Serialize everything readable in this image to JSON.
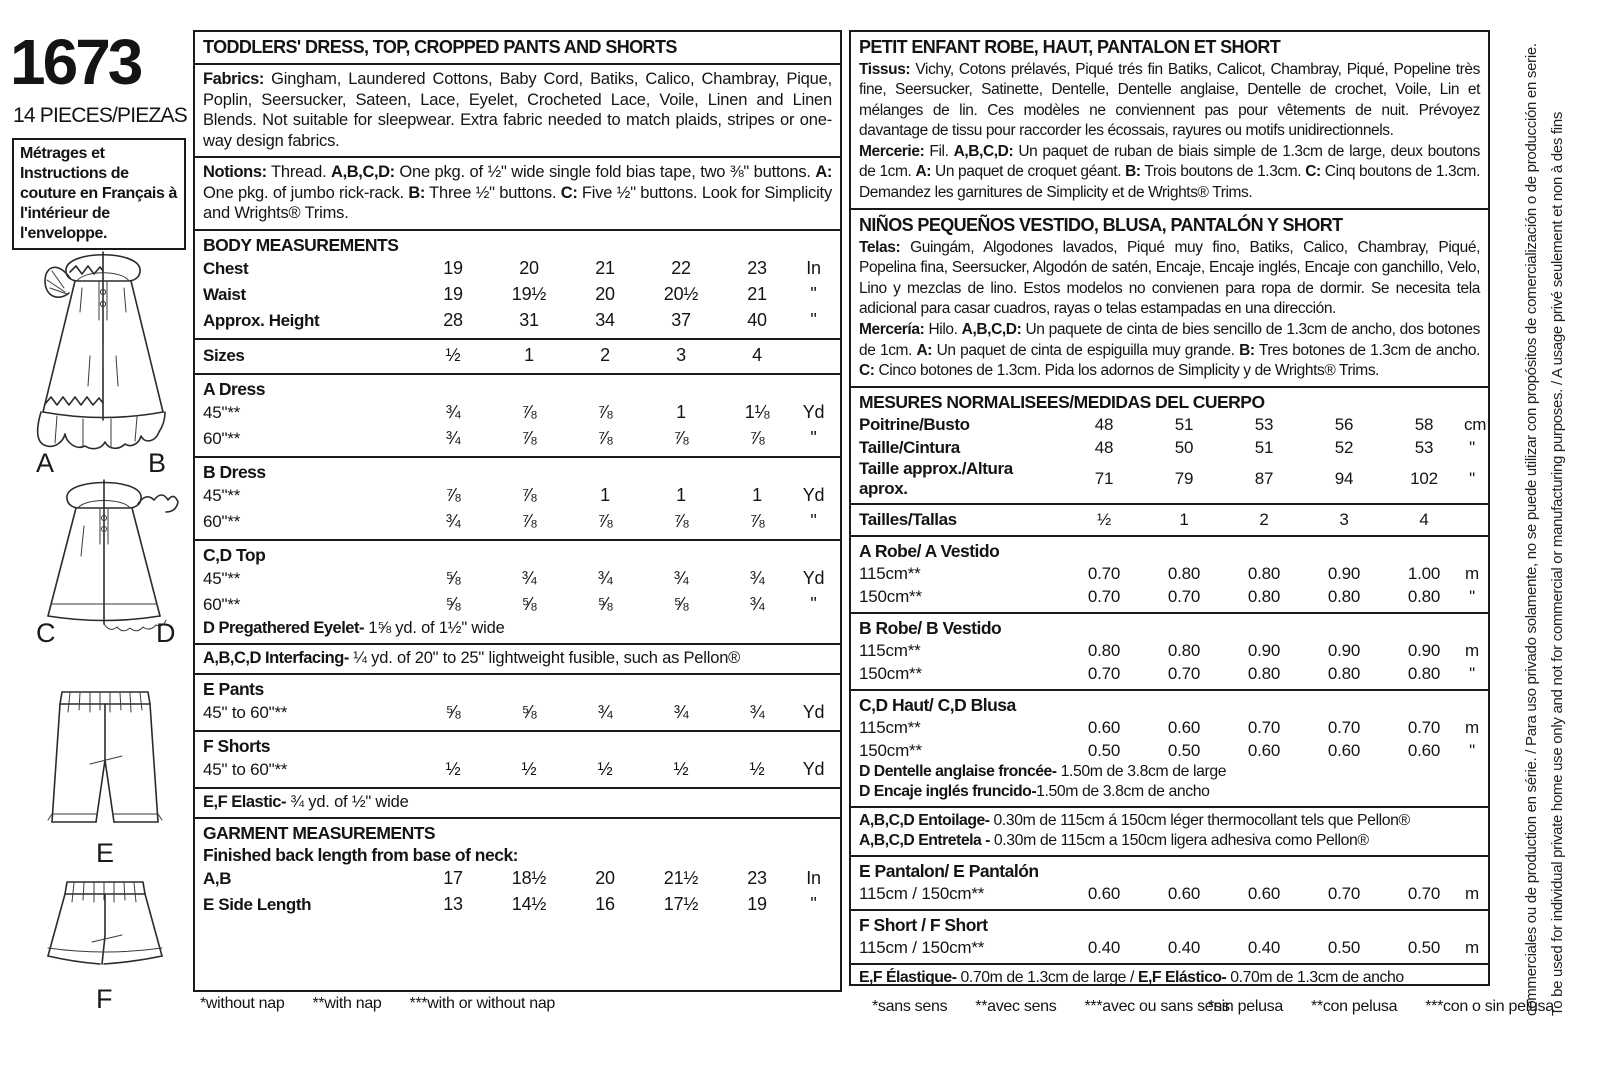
{
  "meta": {
    "pattern_number": "1673",
    "pieces": "14 PIECES/PIEZAS",
    "french_note": "Métrages et Instructions de couture en Français à l'intérieur de l'enveloppe."
  },
  "figures": {
    "dress_left_label": "A",
    "dress_right_label": "B",
    "top_left_label": "C",
    "top_right_label": "D",
    "pants_label": "E",
    "shorts_label": "F"
  },
  "en": {
    "title": "TODDLERS' DRESS, TOP, CROPPED PANTS AND SHORTS",
    "fabrics": [
      {
        "t": "Fabrics:",
        "b": true
      },
      {
        "t": " Gingham, Laundered Cottons, Baby Cord, Batiks, Calico, Chambray, Pique, Poplin, Seersucker, Sateen, Lace, Eyelet, Crocheted Lace, Voile, Linen and Linen Blends. Not suitable for sleepwear. Extra fabric needed to match plaids, stripes or one-way design fabrics."
      }
    ],
    "notions": [
      {
        "t": "Notions:",
        "b": true
      },
      {
        "t": " Thread. "
      },
      {
        "t": "A,B,C,D:",
        "b": true
      },
      {
        "t": " One pkg. of ½\" wide single fold bias tape, two ⅜\" buttons. "
      },
      {
        "t": "A:",
        "b": true
      },
      {
        "t": " One pkg. of jumbo rick-rack. "
      },
      {
        "t": "B:",
        "b": true
      },
      {
        "t": " Three ½\" buttons. "
      },
      {
        "t": "C:",
        "b": true
      },
      {
        "t": " Five ½\" buttons. Look for Simplicity and Wrights® Trims."
      }
    ],
    "body": {
      "header": "BODY MEASUREMENTS",
      "rows": [
        {
          "label": "Chest",
          "bold": true,
          "values": [
            "19",
            "20",
            "21",
            "22",
            "23"
          ],
          "unit": "In"
        },
        {
          "label": "Waist",
          "bold": true,
          "values": [
            "19",
            "19½",
            "20",
            "20½",
            "21"
          ],
          "unit": "\""
        },
        {
          "label": "Approx. Height",
          "bold": true,
          "values": [
            "28",
            "31",
            "34",
            "37",
            "40"
          ],
          "unit": "\""
        }
      ]
    },
    "sizes_rows": [
      {
        "label": "Sizes",
        "bold": true,
        "values": [
          "½",
          "1",
          "2",
          "3",
          "4"
        ],
        "unit": ""
      }
    ],
    "a_dress": {
      "header": "A Dress",
      "rows": [
        {
          "label": "45\"**",
          "bold": false,
          "values": [
            "¾",
            "⅞",
            "⅞",
            "1",
            "1⅛"
          ],
          "unit": "Yd"
        },
        {
          "label": "60\"**",
          "bold": false,
          "values": [
            "¾",
            "⅞",
            "⅞",
            "⅞",
            "⅞"
          ],
          "unit": "\""
        }
      ]
    },
    "b_dress": {
      "header": "B Dress",
      "rows": [
        {
          "label": "45\"**",
          "bold": false,
          "values": [
            "⅞",
            "⅞",
            "1",
            "1",
            "1"
          ],
          "unit": "Yd"
        },
        {
          "label": "60\"**",
          "bold": false,
          "values": [
            "¾",
            "⅞",
            "⅞",
            "⅞",
            "⅞"
          ],
          "unit": "\""
        }
      ]
    },
    "cd_top": {
      "header": "C,D Top",
      "rows": [
        {
          "label": "45\"**",
          "bold": false,
          "values": [
            "⅝",
            "¾",
            "¾",
            "¾",
            "¾"
          ],
          "unit": "Yd"
        },
        {
          "label": "60\"**",
          "bold": false,
          "values": [
            "⅝",
            "⅝",
            "⅝",
            "⅝",
            "¾"
          ],
          "unit": "\""
        }
      ],
      "note": [
        {
          "t": "D Pregathered Eyelet-",
          "b": true
        },
        {
          "t": " 1⅝ yd. of 1½\" wide"
        }
      ]
    },
    "interfacing": [
      {
        "t": "A,B,C,D Interfacing-",
        "b": true
      },
      {
        "t": " ¼ yd. of 20\" to 25\" lightweight fusible, such as Pellon®"
      }
    ],
    "e_pants": {
      "header": "E Pants",
      "rows": [
        {
          "label": "45\" to 60\"**",
          "bold": false,
          "values": [
            "⅝",
            "⅝",
            "¾",
            "¾",
            "¾"
          ],
          "unit": "Yd"
        }
      ]
    },
    "f_shorts": {
      "header": "F Shorts",
      "rows": [
        {
          "label": "45\" to 60\"**",
          "bold": false,
          "values": [
            "½",
            "½",
            "½",
            "½",
            "½"
          ],
          "unit": "Yd"
        }
      ]
    },
    "elastic": [
      {
        "t": "E,F Elastic-",
        "b": true
      },
      {
        "t": " ¾ yd. of ½\" wide"
      }
    ],
    "garment": {
      "header": "GARMENT MEASUREMENTS",
      "sub": "Finished back length from base of neck:",
      "rows": [
        {
          "label": "A,B",
          "bold": true,
          "values": [
            "17",
            "18½",
            "20",
            "21½",
            "23"
          ],
          "unit": "In"
        },
        {
          "label": "E Side Length",
          "bold": true,
          "values": [
            "13",
            "14½",
            "16",
            "17½",
            "19"
          ],
          "unit": "\""
        }
      ]
    },
    "footnotes": [
      "*without nap",
      "**with nap",
      "***with or without nap"
    ]
  },
  "intl": {
    "title_fr": "PETIT ENFANT ROBE, HAUT, PANTALON ET SHORT",
    "tissus": [
      {
        "t": "Tissus:",
        "b": true
      },
      {
        "t": " Vichy, Cotons prélavés, Piqué trés fin Batiks, Calicot, Chambray, Piqué, Popeline très fine, Seersucker, Satinette, Dentelle, Dentelle anglaise, Dentelle de crochet, Voile, Lin et mélanges de lin. Ces modèles ne conviennent pas pour vêtements de nuit. Prévoyez davantage de tissu pour raccorder les écossais, rayures ou motifs unidirectionnels."
      }
    ],
    "mercerie": [
      {
        "t": "Mercerie:",
        "b": true
      },
      {
        "t": " Fil. "
      },
      {
        "t": "A,B,C,D:",
        "b": true
      },
      {
        "t": " Un paquet de ruban de biais simple de 1.3cm de large, deux boutons de 1cm. "
      },
      {
        "t": "A:",
        "b": true
      },
      {
        "t": " Un paquet de croquet géant. "
      },
      {
        "t": "B:",
        "b": true
      },
      {
        "t": " Trois boutons de 1.3cm. "
      },
      {
        "t": "C:",
        "b": true
      },
      {
        "t": " Cinq boutons de 1.3cm. Demandez les garnitures de Simplicity et de Wrights® Trims."
      }
    ],
    "title_es": "NIÑOS PEQUEÑOS VESTIDO, BLUSA, PANTALÓN Y SHORT",
    "telas": [
      {
        "t": "Telas:",
        "b": true
      },
      {
        "t": " Guingám, Algodones lavados, Piqué muy fino, Batiks, Calico, Chambray, Piqué, Popelina fina, Seersucker, Algodón de satén, Encaje, Encaje inglés, Encaje con ganchillo, Velo, Lino y mezclas de lino. Estos modelos no convienen para ropa de dormir. Se necesita tela adicional para casar cuadros, rayas o telas estampadas en una dirección."
      }
    ],
    "merceria": [
      {
        "t": "Mercería:",
        "b": true
      },
      {
        "t": " Hilo. "
      },
      {
        "t": "A,B,C,D:",
        "b": true
      },
      {
        "t": " Un paquete de cinta de bies sencillo de 1.3cm de ancho, dos botones de 1cm. "
      },
      {
        "t": "A:",
        "b": true
      },
      {
        "t": " Un paquet de cinta de espiguilla muy grande. "
      },
      {
        "t": "B:",
        "b": true
      },
      {
        "t": " Tres botones de 1.3cm de ancho. "
      },
      {
        "t": "C:",
        "b": true
      },
      {
        "t": " Cinco botones de 1.3cm. Pida los adornos de Simplicity y de Wrights® Trims."
      }
    ],
    "mesures": {
      "header": "MESURES NORMALISEES/MEDIDAS DEL CUERPO",
      "rows": [
        {
          "label": "Poitrine/Busto",
          "bold": true,
          "values": [
            "48",
            "51",
            "53",
            "56",
            "58"
          ],
          "unit": "cm"
        },
        {
          "label": "Taille/Cintura",
          "bold": true,
          "values": [
            "48",
            "50",
            "51",
            "52",
            "53"
          ],
          "unit": "\""
        },
        {
          "label": "Taille approx./Altura aprox.",
          "bold": true,
          "values": [
            "71",
            "79",
            "87",
            "94",
            "102"
          ],
          "unit": "\""
        }
      ]
    },
    "tailles_rows": [
      {
        "label": "Tailles/Tallas",
        "bold": true,
        "values": [
          "½",
          "1",
          "2",
          "3",
          "4"
        ],
        "unit": ""
      }
    ],
    "a_robe": {
      "header": "A Robe/ A Vestido",
      "rows": [
        {
          "label": "115cm**",
          "bold": false,
          "values": [
            "0.70",
            "0.80",
            "0.80",
            "0.90",
            "1.00"
          ],
          "unit": "m"
        },
        {
          "label": "150cm**",
          "bold": false,
          "values": [
            "0.70",
            "0.70",
            "0.80",
            "0.80",
            "0.80"
          ],
          "unit": "\""
        }
      ]
    },
    "b_robe": {
      "header": "B Robe/ B Vestido",
      "rows": [
        {
          "label": "115cm**",
          "bold": false,
          "values": [
            "0.80",
            "0.80",
            "0.90",
            "0.90",
            "0.90"
          ],
          "unit": "m"
        },
        {
          "label": "150cm**",
          "bold": false,
          "values": [
            "0.70",
            "0.70",
            "0.80",
            "0.80",
            "0.80"
          ],
          "unit": "\""
        }
      ]
    },
    "cd_haut": {
      "header": "C,D Haut/ C,D Blusa",
      "rows": [
        {
          "label": "115cm**",
          "bold": false,
          "values": [
            "0.60",
            "0.60",
            "0.70",
            "0.70",
            "0.70"
          ],
          "unit": "m"
        },
        {
          "label": "150cm**",
          "bold": false,
          "values": [
            "0.50",
            "0.50",
            "0.60",
            "0.60",
            "0.60"
          ],
          "unit": "\""
        }
      ],
      "note_fr": [
        {
          "t": "D Dentelle anglaise froncée-",
          "b": true
        },
        {
          "t": " 1.50m de 3.8cm de large"
        }
      ],
      "note_es": [
        {
          "t": "D Encaje inglés fruncido-",
          "b": true
        },
        {
          "t": "1.50m de 3.8cm de ancho"
        }
      ]
    },
    "entoilage_fr": [
      {
        "t": "A,B,C,D Entoilage-",
        "b": true
      },
      {
        "t": " 0.30m de 115cm á 150cm léger thermocollant tels que Pellon®"
      }
    ],
    "entoilage_es": [
      {
        "t": "A,B,C,D Entretela -",
        "b": true
      },
      {
        "t": " 0.30m de 115cm a 150cm ligera adhesiva como Pellon®"
      }
    ],
    "e_pant": {
      "header": "E Pantalon/ E Pantalón",
      "rows": [
        {
          "label": "115cm / 150cm**",
          "bold": false,
          "values": [
            "0.60",
            "0.60",
            "0.60",
            "0.70",
            "0.70"
          ],
          "unit": "m"
        }
      ]
    },
    "f_short": {
      "header": "F Short / F Short",
      "rows": [
        {
          "label": "115cm / 150cm**",
          "bold": false,
          "values": [
            "0.40",
            "0.40",
            "0.40",
            "0.50",
            "0.50"
          ],
          "unit": "m"
        }
      ]
    },
    "elastique": [
      {
        "t": "E,F Élastique-",
        "b": true
      },
      {
        "t": " 0.70m de 1.3cm de large / "
      },
      {
        "t": "E,F Elástico-",
        "b": true
      },
      {
        "t": " 0.70m de 1.3cm de ancho"
      }
    ],
    "footnotes_fr": [
      "*sans sens",
      "**avec sens",
      "***avec ou sans sens"
    ],
    "footnotes_es": [
      "*sin pelusa",
      "**con pelusa",
      "***con o sin pelusa"
    ]
  },
  "side_text": {
    "line1": "To be used for individual private home use only and not for commercial or manufacturing purposes. / A usage privé seulement et non à des fins",
    "line2": "commerciales ou de production en série. / Para uso privado solamente, no se puede utilizar con propósitos de comercialización o de producción en serie."
  }
}
